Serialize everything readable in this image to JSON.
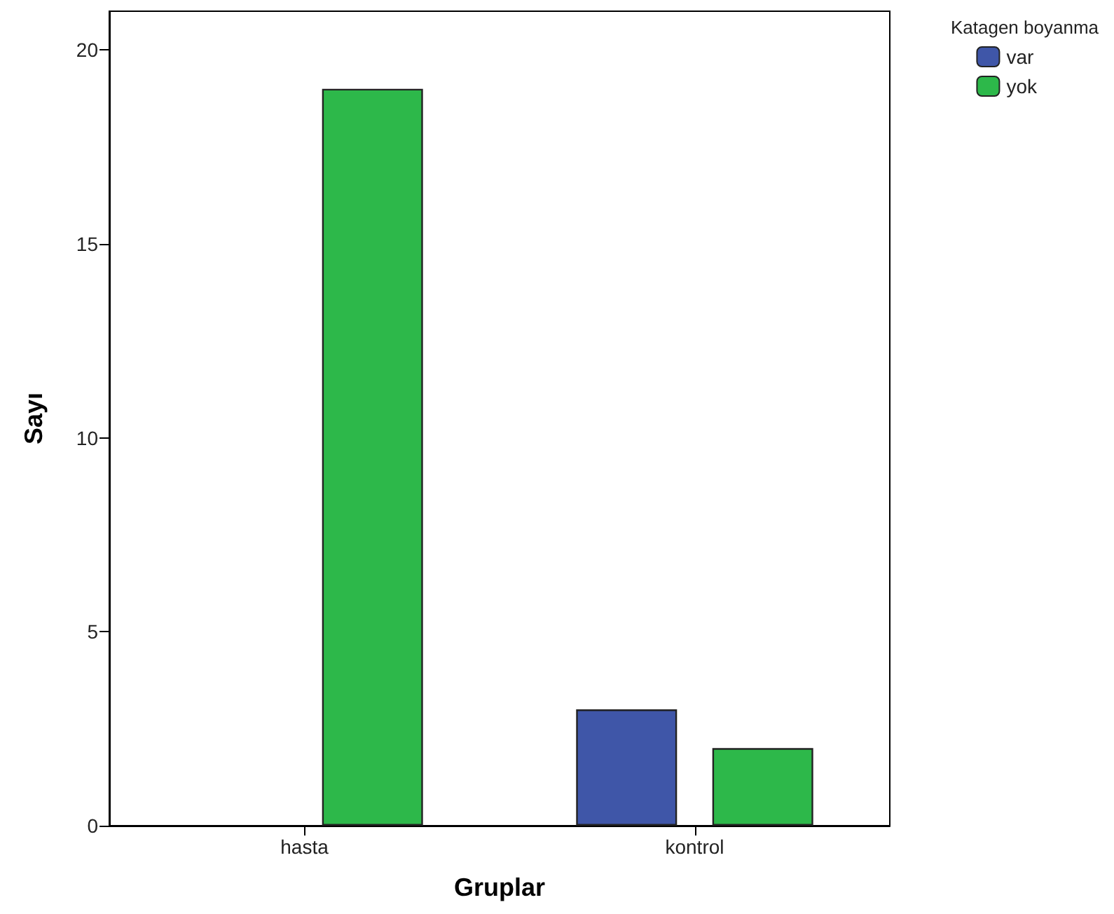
{
  "chart_data": {
    "type": "bar",
    "xlabel": "Gruplar",
    "ylabel": "Sayı",
    "legend_title": "Katagen boyanma",
    "categories": [
      "hasta",
      "kontrol"
    ],
    "series": [
      {
        "name": "var",
        "color": "#3f56a8",
        "values": [
          0,
          3
        ]
      },
      {
        "name": "yok",
        "color": "#2db84a",
        "values": [
          19,
          2
        ]
      }
    ],
    "ylim": [
      0,
      21
    ],
    "yticks": [
      0,
      5,
      10,
      15,
      20
    ],
    "grid": false,
    "legend": "top right"
  }
}
